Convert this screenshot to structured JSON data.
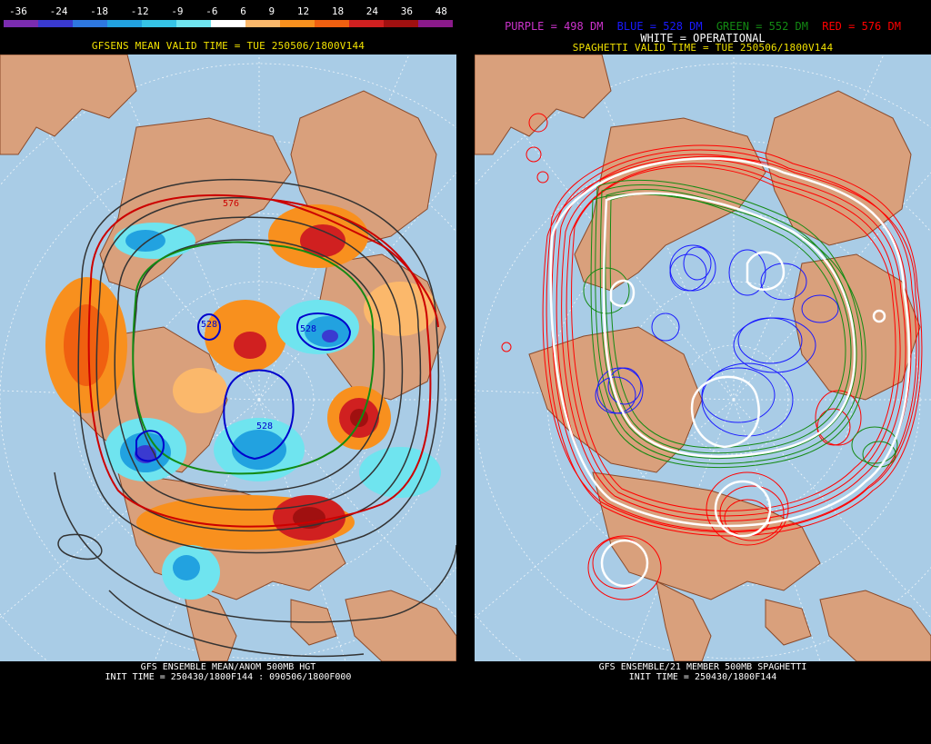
{
  "left": {
    "scale_labels": [
      "-36",
      "-24",
      "-18",
      "-12",
      "-9",
      "-6",
      "6",
      "9",
      "12",
      "18",
      "24",
      "36",
      "48"
    ],
    "scale_colors": [
      "#7b2cb0",
      "#3a3ad0",
      "#2e78e0",
      "#22a2e0",
      "#36c4e6",
      "#6fe4ef",
      "#ffffff",
      "#fbb86b",
      "#f8901e",
      "#f06010",
      "#d02020",
      "#a01010",
      "#8a1a8a"
    ],
    "valid_time": "GFSENS MEAN VALID TIME = TUE 250506/1800V144",
    "footer_line1": "GFS ENSEMBLE MEAN/ANOM 500MB HGT",
    "footer_line2": "INIT TIME = 250430/1800F144 : 090506/1800F000",
    "contour_labels": [
      "576",
      "528",
      "528",
      "528"
    ]
  },
  "right": {
    "legend_purple": "PURPLE = 498 DM",
    "legend_blue": "BLUE = 528 DM",
    "legend_green": "GREEN = 552 DM",
    "legend_red": "RED = 576 DM",
    "legend_white": "WHITE = OPERATIONAL",
    "valid_time": "SPAGHETTI VALID TIME = TUE 250506/1800V144",
    "footer_line1": "GFS ENSEMBLE/21 MEMBER 500MB SPAGHETTI",
    "footer_line2": "INIT TIME = 250430/1800F144"
  },
  "colors": {
    "ocean": "#a9cce6",
    "land": "#d9a07c",
    "border": "#8b4a2a",
    "purple": "#cc33cc",
    "blue": "#1a1aff",
    "green": "#138a13",
    "red": "#ff0000",
    "yellow": "#f0e000"
  }
}
